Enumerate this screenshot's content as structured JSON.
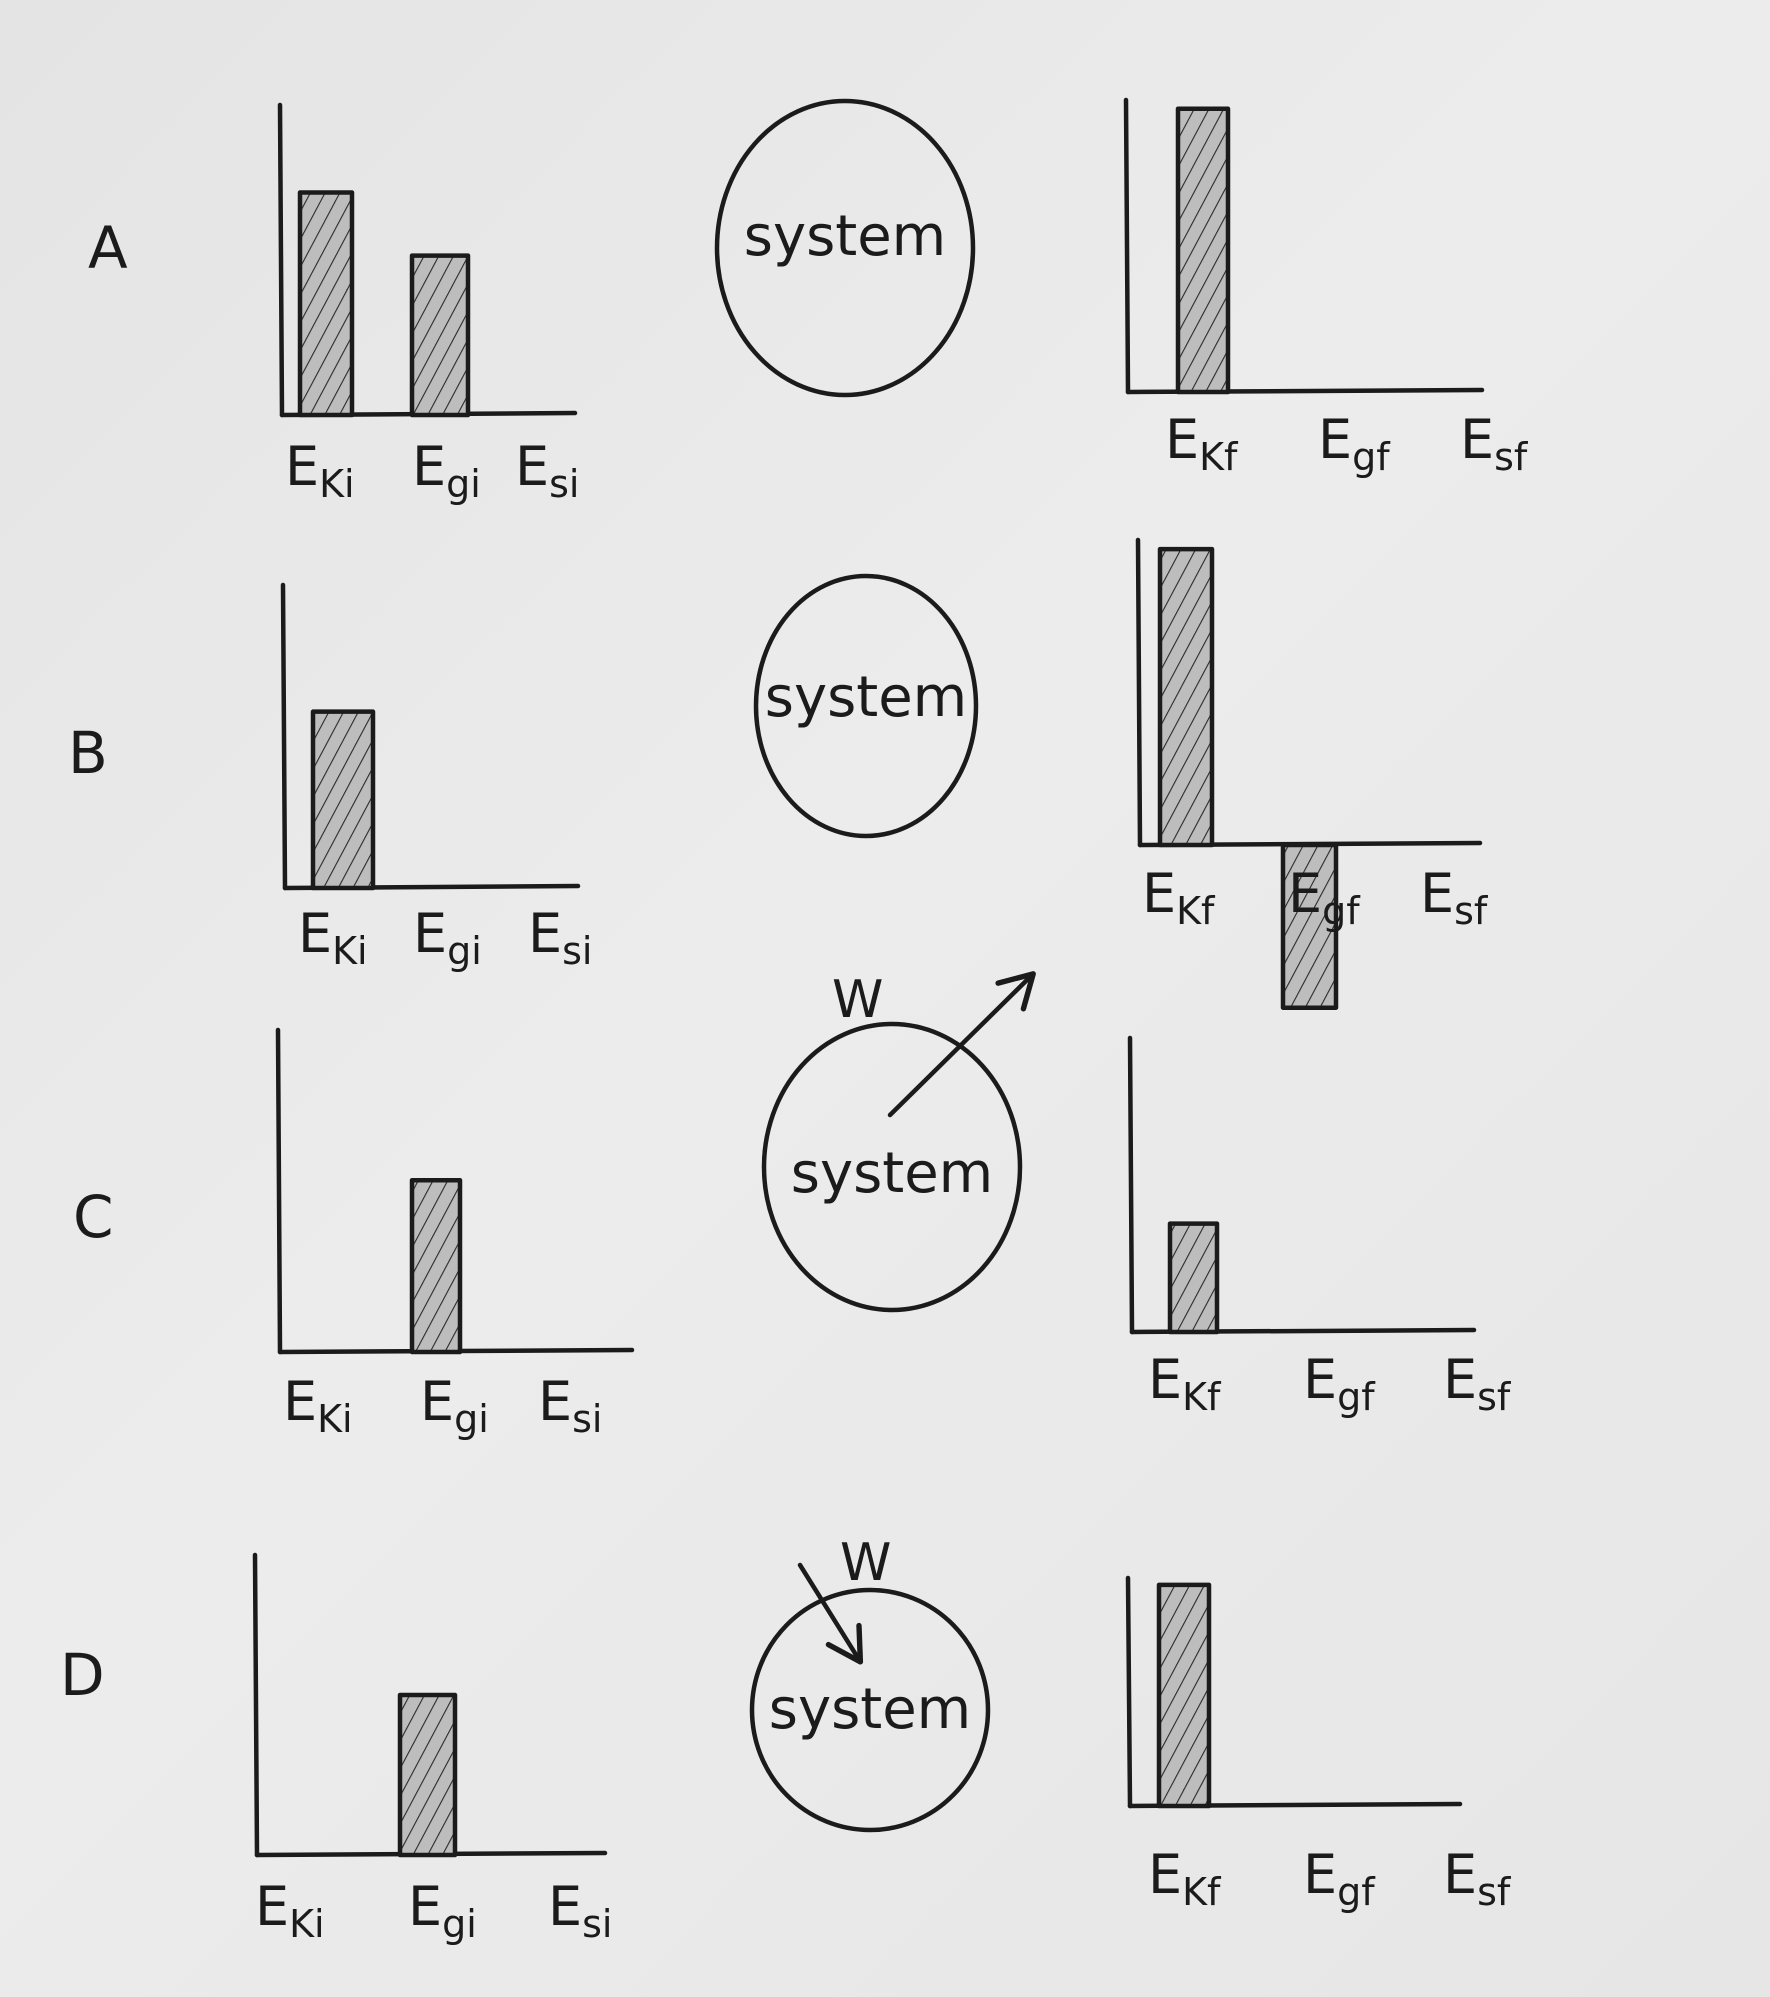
{
  "rows": [
    {
      "label": "A",
      "initial": {
        "categories": [
          "Eki",
          "Egi",
          "Esi"
        ],
        "tick_labels": [
          {
            "main": "E",
            "sub": "Ki"
          },
          {
            "main": "E",
            "sub": "gi"
          },
          {
            "main": "E",
            "sub": "si"
          }
        ],
        "values": [
          0.74,
          0.53,
          0
        ]
      },
      "system": {
        "label": "system",
        "work_label": "",
        "work_direction": "none"
      },
      "final": {
        "categories": [
          "Ekf",
          "Egf",
          "Esf"
        ],
        "tick_labels": [
          {
            "main": "E",
            "sub": "Kf"
          },
          {
            "main": "E",
            "sub": "gf"
          },
          {
            "main": "E",
            "sub": "sf"
          }
        ],
        "values": [
          1.0,
          0,
          0
        ]
      }
    },
    {
      "label": "B",
      "initial": {
        "categories": [
          "Eki",
          "Egi",
          "Esi"
        ],
        "tick_labels": [
          {
            "main": "E",
            "sub": "Ki"
          },
          {
            "main": "E",
            "sub": "gi"
          },
          {
            "main": "E",
            "sub": "si"
          }
        ],
        "values": [
          0.6,
          0,
          0
        ]
      },
      "system": {
        "label": "system",
        "work_label": "",
        "work_direction": "none"
      },
      "final": {
        "categories": [
          "Ekf",
          "Egf",
          "Esf"
        ],
        "tick_labels": [
          {
            "main": "E",
            "sub": "Kf"
          },
          {
            "main": "E",
            "sub": "gf"
          },
          {
            "main": "E",
            "sub": "sf"
          }
        ],
        "values": [
          1.0,
          -0.55,
          0
        ]
      }
    },
    {
      "label": "C",
      "initial": {
        "categories": [
          "Eki",
          "Egi",
          "Esi"
        ],
        "tick_labels": [
          {
            "main": "E",
            "sub": "Ki"
          },
          {
            "main": "E",
            "sub": "gi"
          },
          {
            "main": "E",
            "sub": "si"
          }
        ],
        "values": [
          0,
          0.55,
          0
        ]
      },
      "system": {
        "label": "system",
        "work_label": "W",
        "work_direction": "out"
      },
      "final": {
        "categories": [
          "Ekf",
          "Egf",
          "Esf"
        ],
        "tick_labels": [
          {
            "main": "E",
            "sub": "Kf"
          },
          {
            "main": "E",
            "sub": "gf"
          },
          {
            "main": "E",
            "sub": "sf"
          }
        ],
        "values": [
          0.38,
          0,
          0
        ]
      }
    },
    {
      "label": "D",
      "initial": {
        "categories": [
          "Eki",
          "Egi",
          "Esi"
        ],
        "tick_labels": [
          {
            "main": "E",
            "sub": "Ki"
          },
          {
            "main": "E",
            "sub": "gi"
          },
          {
            "main": "E",
            "sub": "si"
          }
        ],
        "values": [
          0,
          0.55,
          0
        ]
      },
      "system": {
        "label": "system",
        "work_label": "W",
        "work_direction": "in"
      },
      "final": {
        "categories": [
          "Ekf",
          "Egf",
          "Esf"
        ],
        "tick_labels": [
          {
            "main": "E",
            "sub": "Kf"
          },
          {
            "main": "E",
            "sub": "gf"
          },
          {
            "main": "E",
            "sub": "sf"
          }
        ],
        "values": [
          1.0,
          0,
          0
        ]
      }
    }
  ]
}
